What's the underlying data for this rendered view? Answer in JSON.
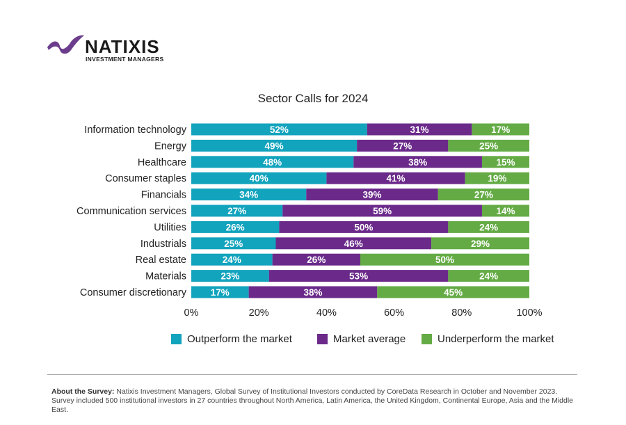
{
  "logo": {
    "name": "NATIXIS",
    "subtitle": "INVESTMENT MANAGERS"
  },
  "chart_data": {
    "type": "bar",
    "orientation": "horizontal-stacked",
    "title": "Sector Calls for 2024",
    "categories": [
      "Information technology",
      "Energy",
      "Healthcare",
      "Consumer staples",
      "Financials",
      "Communication services",
      "Utilities",
      "Industrials",
      "Real estate",
      "Materials",
      "Consumer discretionary"
    ],
    "series": [
      {
        "name": "Outperform the market",
        "color": "#12a3bd",
        "values": [
          52,
          49,
          48,
          40,
          34,
          27,
          26,
          25,
          24,
          23,
          17
        ]
      },
      {
        "name": "Market average",
        "color": "#6b2a8a",
        "values": [
          31,
          27,
          38,
          41,
          39,
          59,
          50,
          46,
          26,
          53,
          38
        ]
      },
      {
        "name": "Underperform the market",
        "color": "#64ab45",
        "values": [
          17,
          25,
          15,
          19,
          27,
          14,
          24,
          29,
          50,
          24,
          45
        ]
      }
    ],
    "xlim": [
      0,
      100
    ],
    "xticks": [
      "0%",
      "20%",
      "40%",
      "60%",
      "80%",
      "100%"
    ],
    "grid": false,
    "legend": "bottom"
  },
  "footnote": {
    "label": "About the Survey:",
    "text": " Natixis Investment Managers, Global Survey of Institutional Investors conducted by CoreData Research in October and November 2023. Survey included 500 institutional investors in 27 countries throughout North America, Latin America, the United Kingdom, Continental Europe, Asia and the Middle East."
  }
}
